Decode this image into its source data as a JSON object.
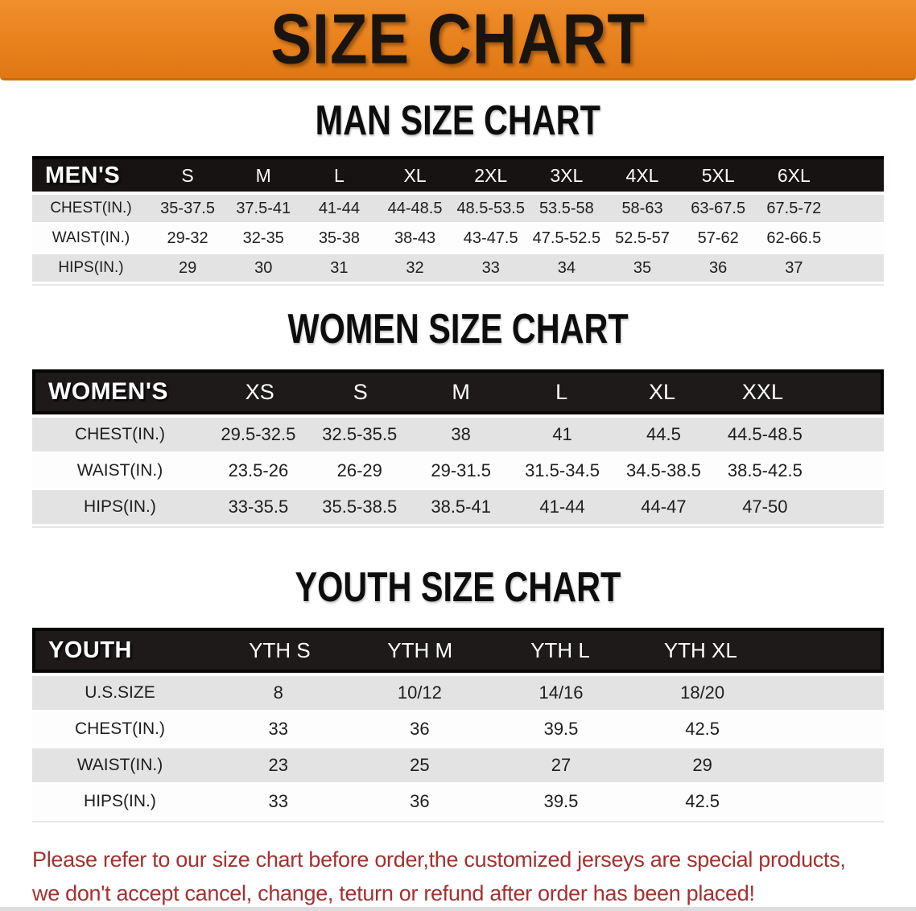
{
  "banner": {
    "title": "SIZE CHART"
  },
  "colors": {
    "banner_orange": "#e8811c",
    "header_black": "#181313",
    "row_gray": "#e3e3e3",
    "row_white": "#fdfdfd",
    "footer_red": "#a53030"
  },
  "sections": {
    "men": {
      "heading": "MAN SIZE CHART",
      "table": {
        "label": "MEN'S",
        "sizes": [
          "S",
          "M",
          "L",
          "XL",
          "2XL",
          "3XL",
          "4XL",
          "5XL",
          "6XL"
        ],
        "rows": [
          {
            "label": "CHEST(IN.)",
            "values": [
              "35-37.5",
              "37.5-41",
              "41-44",
              "44-48.5",
              "48.5-53.5",
              "53.5-58",
              "58-63",
              "63-67.5",
              "67.5-72"
            ]
          },
          {
            "label": "WAIST(IN.)",
            "values": [
              "29-32",
              "32-35",
              "35-38",
              "38-43",
              "43-47.5",
              "47.5-52.5",
              "52.5-57",
              "57-62",
              "62-66.5"
            ]
          },
          {
            "label": "HIPS(IN.)",
            "values": [
              "29",
              "30",
              "31",
              "32",
              "33",
              "34",
              "35",
              "36",
              "37"
            ]
          }
        ]
      }
    },
    "women": {
      "heading": "WOMEN SIZE CHART",
      "table": {
        "label": "WOMEN'S",
        "sizes": [
          "XS",
          "S",
          "M",
          "L",
          "XL",
          "XXL"
        ],
        "rows": [
          {
            "label": "CHEST(IN.)",
            "values": [
              "29.5-32.5",
              "32.5-35.5",
              "38",
              "41",
              "44.5",
              "44.5-48.5"
            ]
          },
          {
            "label": "WAIST(IN.)",
            "values": [
              "23.5-26",
              "26-29",
              "29-31.5",
              "31.5-34.5",
              "34.5-38.5",
              "38.5-42.5"
            ]
          },
          {
            "label": "HIPS(IN.)",
            "values": [
              "33-35.5",
              "35.5-38.5",
              "38.5-41",
              "41-44",
              "44-47",
              "47-50"
            ]
          }
        ]
      }
    },
    "youth": {
      "heading": "YOUTH SIZE CHART",
      "table": {
        "label": "YOUTH",
        "sizes": [
          "YTH S",
          "YTH M",
          "YTH L",
          "YTH XL"
        ],
        "rows": [
          {
            "label": "U.S.SIZE",
            "values": [
              "8",
              "10/12",
              "14/16",
              "18/20"
            ]
          },
          {
            "label": "CHEST(IN.)",
            "values": [
              "33",
              "36",
              "39.5",
              "42.5"
            ]
          },
          {
            "label": "WAIST(IN.)",
            "values": [
              "23",
              "25",
              "27",
              "29"
            ]
          },
          {
            "label": "HIPS(IN.)",
            "values": [
              "33",
              "36",
              "39.5",
              "42.5"
            ]
          }
        ]
      }
    }
  },
  "footer": {
    "line1": "Please refer to our size chart before order,the customized jerseys are special products,",
    "line2": "we don't accept cancel, change, teturn or refund after order has been placed!"
  }
}
